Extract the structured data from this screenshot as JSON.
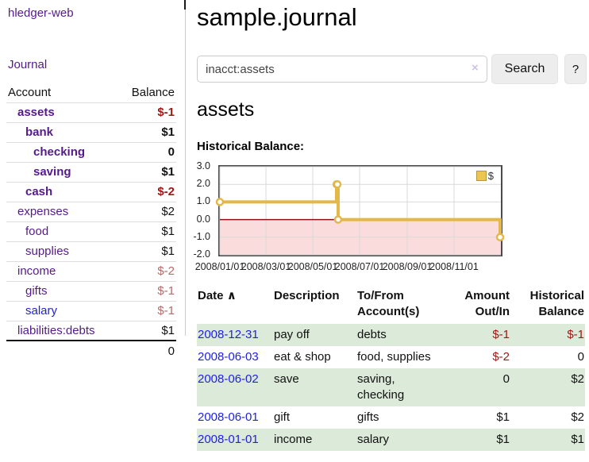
{
  "app": {
    "title": "hledger-web"
  },
  "sidebar": {
    "journal_link": "Journal",
    "accounts": {
      "header_account": "Account",
      "header_balance": "Balance",
      "rows": [
        {
          "name": "assets",
          "balance": "$-1"
        },
        {
          "name": "bank",
          "balance": "$1"
        },
        {
          "name": "checking",
          "balance": "0"
        },
        {
          "name": "saving",
          "balance": "$1"
        },
        {
          "name": "cash",
          "balance": "$-2"
        },
        {
          "name": "expenses",
          "balance": "$2"
        },
        {
          "name": "food",
          "balance": "$1"
        },
        {
          "name": "supplies",
          "balance": "$1"
        },
        {
          "name": "income",
          "balance": "$-2"
        },
        {
          "name": "gifts",
          "balance": "$-1"
        },
        {
          "name": "salary",
          "balance": "$-1"
        },
        {
          "name": "liabilities:debts",
          "balance": "$1"
        }
      ],
      "total": "0"
    }
  },
  "main": {
    "title": "sample.journal",
    "search": {
      "value": "inacct:assets",
      "clear_icon": "×",
      "button_label": "Search",
      "help_label": "?"
    },
    "account_heading": "assets",
    "chart_label": "Historical Balance:",
    "register": {
      "headers": {
        "date": "Date",
        "sort_icon": "∧",
        "description": "Description",
        "accounts": "To/From Account(s)",
        "amount": "Amount Out/In",
        "balance": "Historical Balance"
      },
      "rows": [
        {
          "date": "2008-12-31",
          "description": "pay off",
          "accounts": "debts",
          "amount": "$-1",
          "balance": "$-1"
        },
        {
          "date": "2008-06-03",
          "description": "eat & shop",
          "accounts": "food, supplies",
          "amount": "$-2",
          "balance": "0"
        },
        {
          "date": "2008-06-02",
          "description": "save",
          "accounts": "saving, checking",
          "amount": "0",
          "balance": "$2"
        },
        {
          "date": "2008-06-01",
          "description": "gift",
          "accounts": "gifts",
          "amount": "$1",
          "balance": "$2"
        },
        {
          "date": "2008-01-01",
          "description": "income",
          "accounts": "salary",
          "amount": "$1",
          "balance": "$1"
        }
      ]
    }
  },
  "chart_data": {
    "type": "line",
    "step": true,
    "title": "Historical Balance",
    "series": [
      {
        "name": "$",
        "points": [
          {
            "date": "2008-01-01",
            "value": 1
          },
          {
            "date": "2008-06-01",
            "value": 2
          },
          {
            "date": "2008-06-02",
            "value": 2
          },
          {
            "date": "2008-06-03",
            "value": 0
          },
          {
            "date": "2008-12-31",
            "value": -1
          }
        ]
      }
    ],
    "x_range": [
      "2008-01-01",
      "2009-01-01"
    ],
    "ylim": [
      -2,
      3
    ],
    "y_ticks": [
      {
        "value": 3,
        "label": "3.0"
      },
      {
        "value": 2,
        "label": "2.0"
      },
      {
        "value": 1,
        "label": "1.0"
      },
      {
        "value": 0,
        "label": "0.0"
      },
      {
        "value": -1,
        "label": "-1.0"
      },
      {
        "value": -2,
        "label": "-2.0"
      }
    ],
    "x_ticks": [
      {
        "date": "2008-01-01",
        "label": "2008/01/01"
      },
      {
        "date": "2008-03-01",
        "label": "2008/03/01"
      },
      {
        "date": "2008-05-01",
        "label": "2008/05/01"
      },
      {
        "date": "2008-07-01",
        "label": "2008/07/01"
      },
      {
        "date": "2008-09-01",
        "label": "2008/09/01"
      },
      {
        "date": "2008-11-01",
        "label": "2008/11/01"
      }
    ],
    "legend": {
      "label": "$",
      "position": "top-right"
    },
    "colors": {
      "line": "#e2b84a",
      "marker_fill": "#ffffff",
      "negative_fill": "#fbdcdc",
      "zero_line": "#8e1212",
      "grid": "#d9d9d9",
      "border": "#4a4a4a"
    }
  }
}
